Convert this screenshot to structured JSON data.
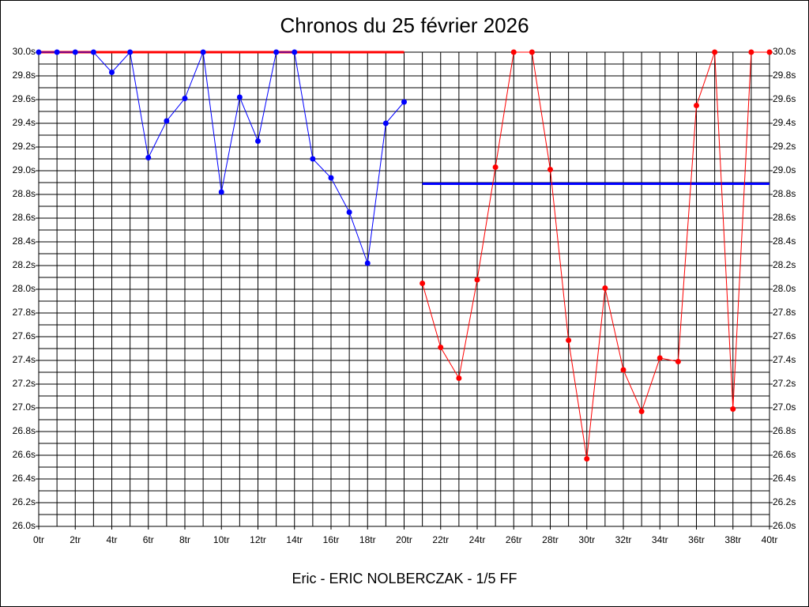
{
  "chart_data": {
    "type": "line",
    "title": "Chronos du 25 février 2026",
    "footer": "Eric - ERIC NOLBERCZAK - 1/5 FF",
    "x": [
      0,
      1,
      2,
      3,
      4,
      5,
      6,
      7,
      8,
      9,
      10,
      11,
      12,
      13,
      14,
      15,
      16,
      17,
      18,
      19,
      20,
      21,
      22,
      23,
      24,
      25,
      26,
      27,
      28,
      29,
      30,
      31,
      32,
      33,
      34,
      35,
      36,
      37,
      38,
      39,
      40
    ],
    "series": [
      {
        "color": "#0000ff",
        "values": [
          30.0,
          30.0,
          30.0,
          30.0,
          29.83,
          30.0,
          29.11,
          29.42,
          29.61,
          30.0,
          28.82,
          29.62,
          29.25,
          30.0,
          30.0,
          29.1,
          28.94,
          28.65,
          28.22,
          29.4,
          29.58,
          null,
          null,
          null,
          null,
          null,
          null,
          null,
          null,
          null,
          null,
          null,
          null,
          null,
          null,
          null,
          null,
          null,
          null,
          null,
          null
        ]
      },
      {
        "color": "#ff0000",
        "values": [
          null,
          null,
          null,
          null,
          null,
          null,
          null,
          null,
          null,
          null,
          null,
          null,
          null,
          null,
          null,
          null,
          null,
          null,
          null,
          null,
          null,
          28.05,
          27.51,
          27.25,
          28.08,
          29.03,
          30.0,
          30.0,
          29.01,
          27.57,
          26.57,
          28.01,
          27.32,
          26.97,
          27.42,
          27.39,
          29.55,
          30.0,
          26.99,
          30.0,
          30.0
        ]
      }
    ],
    "ref_lines": [
      {
        "color": "#ff0000",
        "value": 30.0,
        "x": [
          0,
          20
        ]
      },
      {
        "color": "#0000ff",
        "value": 28.89,
        "x": [
          21,
          40
        ]
      }
    ],
    "xlim": [
      0,
      40
    ],
    "ylim": [
      26.0,
      30.0
    ],
    "xgrid_step": 1,
    "ygrid_step": 0.1,
    "xticks": [
      {
        "value": 0,
        "label": "0tr"
      },
      {
        "value": 2,
        "label": "2tr"
      },
      {
        "value": 4,
        "label": "4tr"
      },
      {
        "value": 6,
        "label": "6tr"
      },
      {
        "value": 8,
        "label": "8tr"
      },
      {
        "value": 10,
        "label": "10tr"
      },
      {
        "value": 12,
        "label": "12tr"
      },
      {
        "value": 14,
        "label": "14tr"
      },
      {
        "value": 16,
        "label": "16tr"
      },
      {
        "value": 18,
        "label": "18tr"
      },
      {
        "value": 20,
        "label": "20tr"
      },
      {
        "value": 22,
        "label": "22tr"
      },
      {
        "value": 24,
        "label": "24tr"
      },
      {
        "value": 26,
        "label": "26tr"
      },
      {
        "value": 28,
        "label": "28tr"
      },
      {
        "value": 30,
        "label": "30tr"
      },
      {
        "value": 32,
        "label": "32tr"
      },
      {
        "value": 34,
        "label": "34tr"
      },
      {
        "value": 36,
        "label": "36tr"
      },
      {
        "value": 38,
        "label": "38tr"
      },
      {
        "value": 40,
        "label": "40tr"
      }
    ],
    "yticks": [
      {
        "value": 26.0,
        "label": "26.0s"
      },
      {
        "value": 26.2,
        "label": "26.2s"
      },
      {
        "value": 26.4,
        "label": "26.4s"
      },
      {
        "value": 26.6,
        "label": "26.6s"
      },
      {
        "value": 26.8,
        "label": "26.8s"
      },
      {
        "value": 27.0,
        "label": "27.0s"
      },
      {
        "value": 27.2,
        "label": "27.2s"
      },
      {
        "value": 27.4,
        "label": "27.4s"
      },
      {
        "value": 27.6,
        "label": "27.6s"
      },
      {
        "value": 27.8,
        "label": "27.8s"
      },
      {
        "value": 28.0,
        "label": "28.0s"
      },
      {
        "value": 28.2,
        "label": "28.2s"
      },
      {
        "value": 28.4,
        "label": "28.4s"
      },
      {
        "value": 28.6,
        "label": "28.6s"
      },
      {
        "value": 28.8,
        "label": "28.8s"
      },
      {
        "value": 29.0,
        "label": "29.0s"
      },
      {
        "value": 29.2,
        "label": "29.2s"
      },
      {
        "value": 29.4,
        "label": "29.4s"
      },
      {
        "value": 29.6,
        "label": "29.6s"
      },
      {
        "value": 29.8,
        "label": "29.8s"
      },
      {
        "value": 30.0,
        "label": "30.0s"
      }
    ],
    "grid": true
  }
}
